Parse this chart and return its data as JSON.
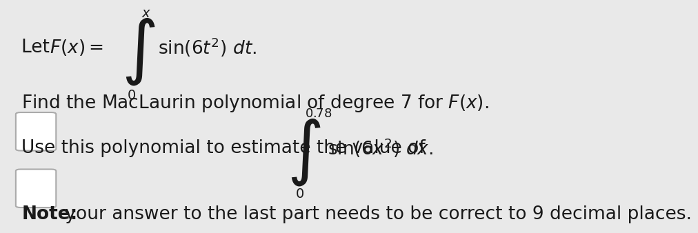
{
  "bg_color": "#e9e9e9",
  "text_color": "#1a1a1a",
  "note_rest": " your answer to the last part needs to be correct to 9 decimal places."
}
